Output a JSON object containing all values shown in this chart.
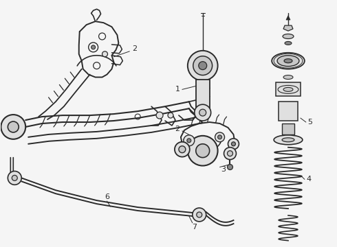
{
  "background_color": "#f5f5f5",
  "line_color": "#2a2a2a",
  "label_color": "#1a1a1a",
  "figure_width": 4.9,
  "figure_height": 3.6,
  "dpi": 100,
  "lw": 1.1,
  "gray_fill": "#c8c8c8",
  "light_gray": "#e0e0e0",
  "dark_gray": "#888888"
}
